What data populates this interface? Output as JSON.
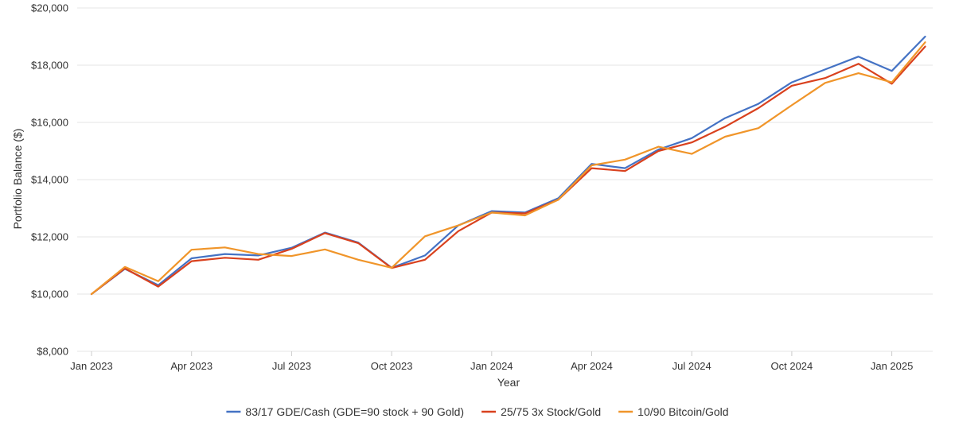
{
  "chart_data": {
    "type": "line",
    "xlabel": "Year",
    "ylabel": "Portfolio Balance ($)",
    "ylim": [
      8000,
      20000
    ],
    "y_ticks": [
      8000,
      10000,
      12000,
      14000,
      16000,
      18000,
      20000
    ],
    "y_tick_labels": [
      "$8,000",
      "$10,000",
      "$12,000",
      "$14,000",
      "$16,000",
      "$18,000",
      "$20,000"
    ],
    "x_ticks": [
      {
        "month_index": 0,
        "label": "Jan 2023"
      },
      {
        "month_index": 3,
        "label": "Apr 2023"
      },
      {
        "month_index": 6,
        "label": "Jul 2023"
      },
      {
        "month_index": 9,
        "label": "Oct 2023"
      },
      {
        "month_index": 12,
        "label": "Jan 2024"
      },
      {
        "month_index": 15,
        "label": "Apr 2024"
      },
      {
        "month_index": 18,
        "label": "Jul 2024"
      },
      {
        "month_index": 21,
        "label": "Oct 2024"
      },
      {
        "month_index": 24,
        "label": "Jan 2025"
      }
    ],
    "x": [
      "2023-01",
      "2023-02",
      "2023-03",
      "2023-04",
      "2023-05",
      "2023-06",
      "2023-07",
      "2023-08",
      "2023-09",
      "2023-10",
      "2023-11",
      "2023-12",
      "2024-01",
      "2024-02",
      "2024-03",
      "2024-04",
      "2024-05",
      "2024-06",
      "2024-07",
      "2024-08",
      "2024-09",
      "2024-10",
      "2024-11",
      "2024-12",
      "2025-01",
      "2025-02"
    ],
    "grid": true,
    "legend_position": "bottom",
    "series": [
      {
        "name": "83/17 GDE/Cash (GDE=90 stock + 90 Gold)",
        "color": "#4472c4",
        "values": [
          10000,
          10880,
          10310,
          11250,
          11400,
          11350,
          11620,
          12150,
          11800,
          10920,
          11350,
          12400,
          12900,
          12850,
          13350,
          14550,
          14400,
          15050,
          15450,
          16150,
          16650,
          17400,
          17850,
          18300,
          17800,
          19000
        ]
      },
      {
        "name": "25/75 3x Stock/Gold",
        "color": "#d9411e",
        "values": [
          10000,
          10900,
          10260,
          11150,
          11270,
          11200,
          11580,
          12130,
          11780,
          10910,
          11200,
          12200,
          12850,
          12820,
          13300,
          14400,
          14300,
          15000,
          15300,
          15850,
          16500,
          17280,
          17550,
          18050,
          17350,
          18650
        ]
      },
      {
        "name": "10/90 Bitcoin/Gold",
        "color": "#f0952a",
        "values": [
          10000,
          10950,
          10450,
          11550,
          11630,
          11400,
          11330,
          11560,
          11200,
          10920,
          12020,
          12400,
          12850,
          12750,
          13300,
          14500,
          14700,
          15150,
          14900,
          15500,
          15800,
          16600,
          17380,
          17720,
          17400,
          18800
        ]
      }
    ]
  }
}
